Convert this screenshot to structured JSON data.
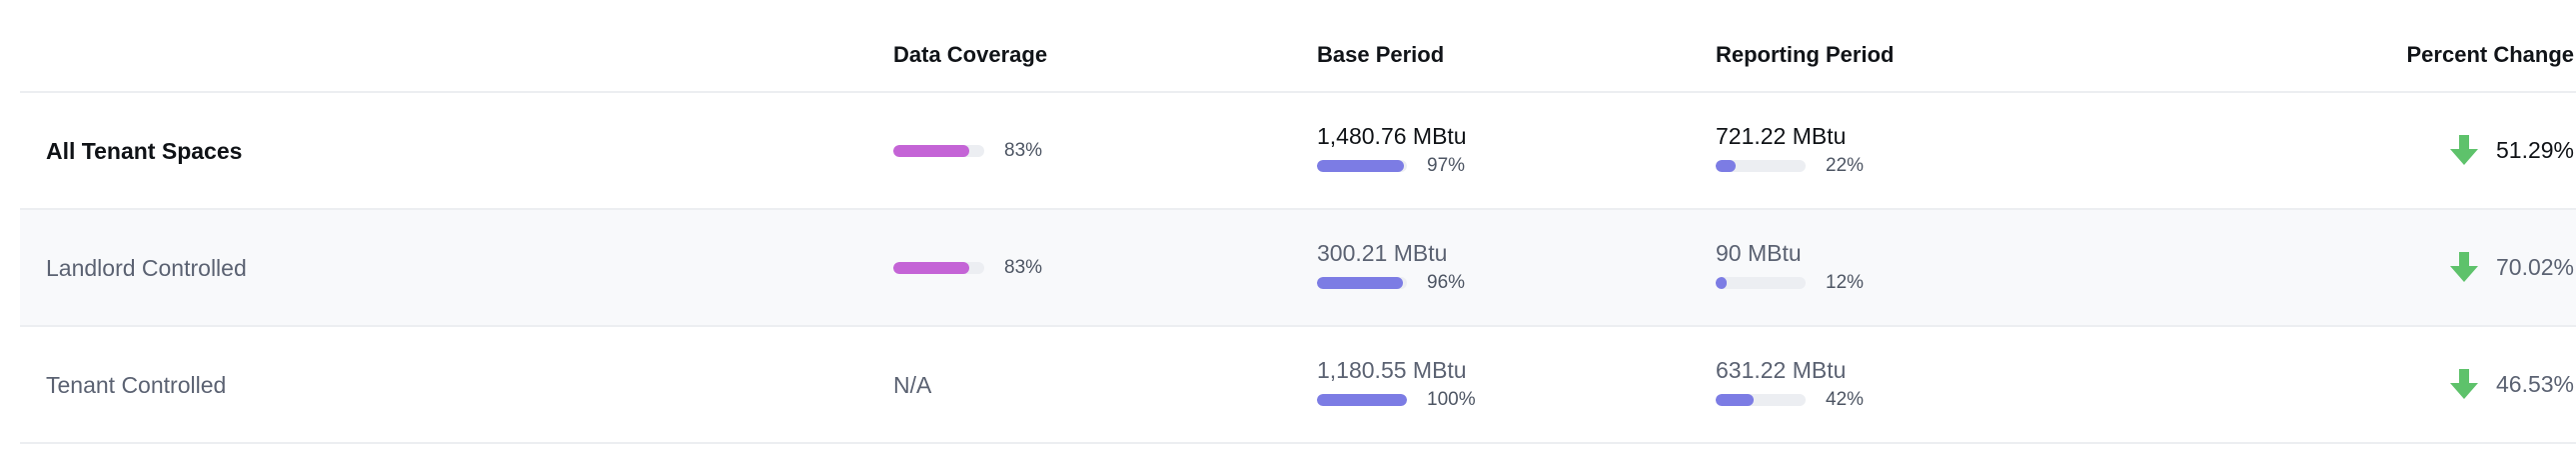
{
  "colors": {
    "coverage_fill": "#c464d6",
    "period_fill": "#7c7ce4",
    "track": "#eceef2",
    "decrease_arrow": "#5ec26b"
  },
  "headers": {
    "col1": "",
    "data_coverage": "Data Coverage",
    "base_period": "Base Period",
    "reporting_period": "Reporting Period",
    "percent_change": "Percent Change"
  },
  "rows": [
    {
      "name": "All Tenant Spaces",
      "coverage_label": "83%",
      "coverage_fraction": 0.83,
      "base_value": "1,480.76 MBtu",
      "base_pct_label": "97%",
      "base_fraction": 0.97,
      "reporting_value": "721.22 MBtu",
      "reporting_pct_label": "22%",
      "reporting_fraction": 0.22,
      "change": "51.29%",
      "change_icon": "arrow-down-icon"
    },
    {
      "name": "Landlord Controlled",
      "coverage_label": "83%",
      "coverage_fraction": 0.83,
      "base_value": "300.21 MBtu",
      "base_pct_label": "96%",
      "base_fraction": 0.96,
      "reporting_value": "90 MBtu",
      "reporting_pct_label": "12%",
      "reporting_fraction": 0.12,
      "change": "70.02%",
      "change_icon": "arrow-down-icon"
    },
    {
      "name": "Tenant Controlled",
      "coverage_label": "N/A",
      "base_value": "1,180.55 MBtu",
      "base_pct_label": "100%",
      "base_fraction": 1.0,
      "reporting_value": "631.22 MBtu",
      "reporting_pct_label": "42%",
      "reporting_fraction": 0.42,
      "change": "46.53%",
      "change_icon": "arrow-down-icon"
    }
  ]
}
